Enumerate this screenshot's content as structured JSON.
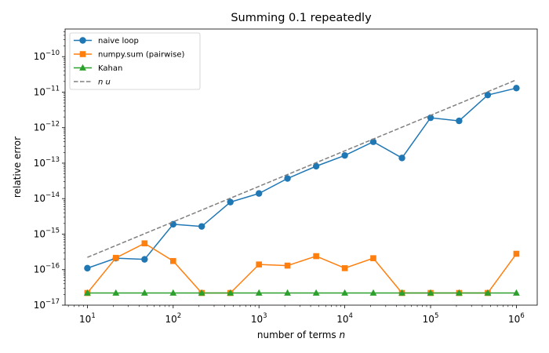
{
  "chart_data": {
    "type": "line",
    "title": "Summing 0.1 repeatedly",
    "xlabel": "number of terms n",
    "ylabel": "relative error",
    "xscale": "log",
    "yscale": "log",
    "xlim": [
      5.5,
      1750000
    ],
    "ylim": [
      1e-17,
      6e-10
    ],
    "x_ticks": [
      {
        "base": "10",
        "exp": "1",
        "value": 10
      },
      {
        "base": "10",
        "exp": "2",
        "value": 100
      },
      {
        "base": "10",
        "exp": "3",
        "value": 1000
      },
      {
        "base": "10",
        "exp": "4",
        "value": 10000
      },
      {
        "base": "10",
        "exp": "5",
        "value": 100000
      },
      {
        "base": "10",
        "exp": "6",
        "value": 1000000
      }
    ],
    "y_ticks": [
      {
        "base": "10",
        "exp": "−17",
        "value": 1e-17
      },
      {
        "base": "10",
        "exp": "−16",
        "value": 1e-16
      },
      {
        "base": "10",
        "exp": "−15",
        "value": 1e-15
      },
      {
        "base": "10",
        "exp": "−14",
        "value": 1e-14
      },
      {
        "base": "10",
        "exp": "−13",
        "value": 1e-13
      },
      {
        "base": "10",
        "exp": "−12",
        "value": 1e-12
      },
      {
        "base": "10",
        "exp": "−11",
        "value": 1e-11
      },
      {
        "base": "10",
        "exp": "−10",
        "value": 1e-10
      }
    ],
    "x": [
      10,
      21.5,
      46.4,
      100,
      215,
      464,
      1000,
      2150,
      4640,
      10000,
      21500,
      46400,
      100000,
      215000,
      464000,
      1000000
    ],
    "legend_position": "upper left",
    "grid": false,
    "series": [
      {
        "name": "naive loop",
        "color": "#1f77b4",
        "marker": "circle",
        "linestyle": "solid",
        "values": [
          1.1e-16,
          2.1e-16,
          1.95e-16,
          1.9e-15,
          1.65e-15,
          8e-15,
          1.4e-14,
          3.7e-14,
          8.2e-14,
          1.65e-13,
          4e-13,
          1.4e-13,
          1.9e-12,
          1.55e-12,
          8.3e-12,
          1.3e-11
        ]
      },
      {
        "name": "numpy.sum (pairwise)",
        "color": "#ff7f0e",
        "marker": "square",
        "linestyle": "solid",
        "values": [
          2.2e-17,
          2.15e-16,
          5.5e-16,
          1.75e-16,
          2.2e-17,
          2.2e-17,
          1.4e-16,
          1.3e-16,
          2.4e-16,
          1.1e-16,
          2.1e-16,
          2.2e-17,
          2.2e-17,
          2.2e-17,
          2.2e-17,
          2.8e-16
        ]
      },
      {
        "name": "Kahan",
        "color": "#2ca02c",
        "marker": "triangle",
        "linestyle": "solid",
        "values": [
          2.2e-17,
          2.2e-17,
          2.2e-17,
          2.2e-17,
          2.2e-17,
          2.2e-17,
          2.2e-17,
          2.2e-17,
          2.2e-17,
          2.2e-17,
          2.2e-17,
          2.2e-17,
          2.2e-17,
          2.2e-17,
          2.2e-17,
          2.2e-17
        ]
      },
      {
        "name": "n u",
        "color": "#808080",
        "marker": "none",
        "linestyle": "dashed",
        "x": [
          10,
          1000000
        ],
        "values": [
          2.22e-16,
          2.22e-11
        ]
      }
    ]
  }
}
